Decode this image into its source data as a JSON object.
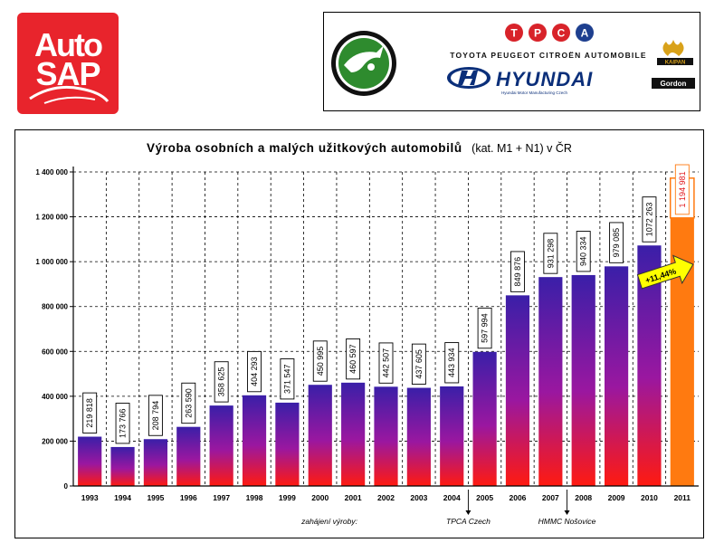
{
  "logos": {
    "autosap": {
      "line1": "Auto",
      "line2": "SAP",
      "color": "#e8242c"
    },
    "tpca": {
      "letters": [
        "T",
        "P",
        "C",
        "A"
      ],
      "subtitle": "TOYOTA PEUGEOT CITROËN AUTOMOBILE",
      "circle_colors": [
        "#d8232a",
        "#d8232a",
        "#d8232a",
        "#1e3f8f"
      ]
    },
    "hyundai": {
      "name": "HYUNDAI",
      "subtitle": "Hyundai Motor Manufacturing Czech",
      "color": "#0b2f7a"
    },
    "skoda": {
      "color": "#2e8b2e"
    },
    "kaipan": {
      "name": "KAIPAN"
    },
    "gordon": {
      "name": "Gordon"
    }
  },
  "chart_data": {
    "type": "bar",
    "title": "Výroba osobních a malých užitkových automobilů",
    "title_suffix": "(kat. M1 + N1) v ČR",
    "categories": [
      "1993",
      "1994",
      "1995",
      "1996",
      "1997",
      "1998",
      "1999",
      "2000",
      "2001",
      "2002",
      "2003",
      "2004",
      "2005",
      "2006",
      "2007",
      "2008",
      "2009",
      "2010",
      "2011"
    ],
    "values": [
      219818,
      173766,
      208794,
      263590,
      358625,
      404293,
      371547,
      450995,
      460597,
      442507,
      437605,
      443934,
      597994,
      849876,
      931298,
      940334,
      979085,
      1072263,
      1194981
    ],
    "value_labels": [
      "219 818",
      "173 766",
      "208 794",
      "263 590",
      "358 625",
      "404 293",
      "371 547",
      "450 995",
      "460 597",
      "442 507",
      "437 605",
      "443 934",
      "597 994",
      "849 876",
      "931 298",
      "940 334",
      "979 085",
      "1072 263",
      "1 194 981"
    ],
    "yticks": [
      0,
      200000,
      400000,
      600000,
      800000,
      1000000,
      1200000,
      1400000
    ],
    "ytick_labels": [
      "0",
      "200 000",
      "400 000",
      "600 000",
      "800 000",
      "1 000 000",
      "1 200 000",
      "1 400 000"
    ],
    "ylim": [
      0,
      1400000
    ],
    "grid": true,
    "growth_annotation": "+11,44%",
    "annotations": {
      "start_label": "zahájení výroby:",
      "events": [
        {
          "category": "2005",
          "label": "TPCA Czech"
        },
        {
          "category": "2008",
          "label": "HMMC Nošovice"
        }
      ]
    },
    "colors": {
      "bar_top": "#3a1fa8",
      "bar_bottom": "#ff1a10",
      "highlight_bar": "#ff7a10",
      "highlight_label": "#e0141a",
      "arrow": "#ffff00"
    }
  }
}
